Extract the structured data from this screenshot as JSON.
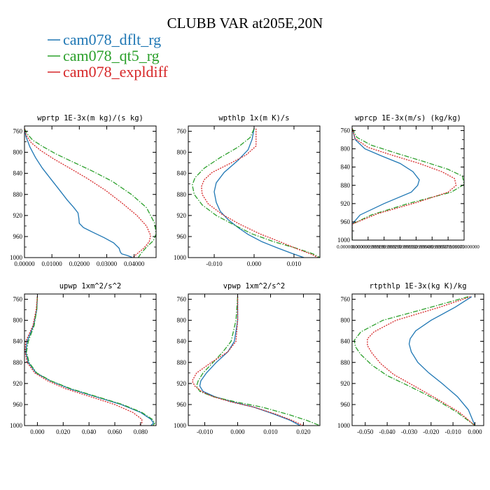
{
  "figure": {
    "title": "CLUBB VAR at205E,20N",
    "legend": [
      {
        "label": "cam078_dflt_rg",
        "color": "#1f77b4",
        "dash": "solid"
      },
      {
        "label": "cam078_qt5_rg",
        "color": "#2ca02c",
        "dash": "dashdot"
      },
      {
        "label": "cam078_expldiff",
        "color": "#d62728",
        "dash": "dotted"
      }
    ]
  },
  "chart_data": [
    {
      "type": "line",
      "title": "wprtp  1E-3x(m kg)/(s kg)",
      "xlim": [
        0,
        0.048
      ],
      "ylim": [
        1000,
        750
      ],
      "yticks": [
        760,
        800,
        840,
        880,
        920,
        960,
        1000
      ],
      "xticks": [
        {
          "v": 0,
          "label": "0.00000"
        },
        {
          "v": 0.01,
          "label": "0.01000"
        },
        {
          "v": 0.02,
          "label": "0.02000"
        },
        {
          "v": 0.03,
          "label": "0.03000"
        },
        {
          "v": 0.04,
          "label": "0.04000"
        }
      ],
      "series": [
        {
          "name": "cam078_dflt_rg",
          "x": [
            0.0,
            0.0005,
            0.002,
            0.004,
            0.0065,
            0.0095,
            0.0125,
            0.0155,
            0.018,
            0.0195,
            0.0198,
            0.02,
            0.0215,
            0.025,
            0.029,
            0.0325,
            0.0345,
            0.035,
            0.0355,
            0.0375,
            0.0395
          ],
          "y": [
            755,
            770,
            790,
            810,
            830,
            850,
            870,
            890,
            905,
            915,
            925,
            935,
            943,
            952,
            962,
            972,
            982,
            990,
            993,
            996,
            1000
          ]
        },
        {
          "name": "cam078_qt5_rg",
          "x": [
            0.0,
            0.001,
            0.003,
            0.007,
            0.0115,
            0.0175,
            0.0245,
            0.032,
            0.039,
            0.0445,
            0.0475,
            0.048,
            0.047,
            0.0445,
            0.0425,
            0.0415
          ],
          "y": [
            755,
            765,
            777,
            790,
            803,
            818,
            835,
            855,
            880,
            905,
            935,
            955,
            968,
            980,
            992,
            1000
          ]
        },
        {
          "name": "cam078_expldiff",
          "x": [
            0.0,
            0.0007,
            0.0025,
            0.006,
            0.0105,
            0.0165,
            0.023,
            0.0295,
            0.0355,
            0.041,
            0.0445,
            0.046,
            0.0455,
            0.0435,
            0.041,
            0.0395
          ],
          "y": [
            755,
            768,
            782,
            797,
            812,
            830,
            850,
            872,
            896,
            920,
            940,
            958,
            970,
            982,
            993,
            1000
          ]
        }
      ]
    },
    {
      "type": "line",
      "title": "wpthlp  1x(m K)/s",
      "xlim": [
        -0.0165,
        0.0165
      ],
      "ylim": [
        1000,
        750
      ],
      "yticks": [
        760,
        800,
        840,
        880,
        920,
        960,
        1000
      ],
      "xticks": [
        {
          "v": -0.01,
          "label": "-0.010"
        },
        {
          "v": 0,
          "label": "0.000"
        },
        {
          "v": 0.01,
          "label": "0.010"
        }
      ],
      "series": [
        {
          "name": "cam078_dflt_rg",
          "x": [
            0.0,
            -0.0005,
            -0.0015,
            -0.004,
            -0.0075,
            -0.0095,
            -0.01,
            -0.0095,
            -0.0085,
            -0.0065,
            -0.004,
            -0.0015,
            0.002,
            0.006,
            0.0095,
            0.0125
          ],
          "y": [
            755,
            775,
            795,
            815,
            838,
            858,
            875,
            895,
            912,
            928,
            943,
            956,
            970,
            982,
            992,
            1000
          ]
        },
        {
          "name": "cam078_qt5_rg",
          "x": [
            0.0,
            -0.001,
            -0.004,
            -0.0085,
            -0.0125,
            -0.0148,
            -0.0155,
            -0.015,
            -0.013,
            -0.0095,
            -0.005,
            -0.0005,
            0.005,
            0.0105,
            0.0148,
            0.0165
          ],
          "y": [
            755,
            772,
            790,
            810,
            830,
            848,
            862,
            880,
            900,
            920,
            938,
            955,
            970,
            982,
            993,
            1000
          ]
        },
        {
          "name": "cam078_expldiff",
          "x": [
            0.0005,
            0.0005,
            0.0005,
            -0.002,
            -0.0065,
            -0.0105,
            -0.0125,
            -0.0132,
            -0.013,
            -0.0115,
            -0.008,
            -0.0035,
            0.0015,
            0.0065,
            0.011,
            0.0145,
            0.016
          ],
          "y": [
            755,
            770,
            788,
            805,
            823,
            838,
            852,
            865,
            880,
            898,
            918,
            937,
            955,
            970,
            984,
            994,
            1000
          ]
        }
      ]
    },
    {
      "type": "line",
      "title": "wprcp  1E-3x(m/s) (kg/kg)",
      "xlim": [
        0,
        0.0007
      ],
      "ylim": [
        1000,
        750
      ],
      "yticks": [
        760,
        800,
        840,
        880,
        920,
        960,
        1000
      ],
      "xticks": [
        {
          "v": 0,
          "label": "0.00000000000"
        },
        {
          "v": 0.0001,
          "label": "0.000099999999"
        },
        {
          "v": 0.0002,
          "label": "0.000199999995"
        },
        {
          "v": 0.0003,
          "label": "0.000299999992"
        },
        {
          "v": 0.0004,
          "label": "0.000399999990"
        },
        {
          "v": 0.0005,
          "label": "0.000499999987"
        },
        {
          "v": 0.0006,
          "label": "0.000599999985"
        },
        {
          "v": 0.0007,
          "label": "0.00070000000"
        }
      ],
      "series": [
        {
          "name": "cam078_dflt_rg",
          "x": [
            0.0,
            2e-05,
            8e-05,
            0.00018,
            0.0003,
            0.00038,
            0.00042,
            0.00041,
            0.00037,
            0.0002,
            5e-05,
            0.0,
            0.0
          ],
          "y": [
            755,
            780,
            800,
            815,
            832,
            850,
            868,
            880,
            895,
            920,
            945,
            965,
            1000
          ]
        },
        {
          "name": "cam078_qt5_rg",
          "x": [
            0.0,
            3e-05,
            0.00012,
            0.00028,
            0.00045,
            0.0006,
            0.00069,
            0.0007,
            0.00062,
            0.00035,
            0.00012,
            0.0,
            0.0
          ],
          "y": [
            755,
            775,
            792,
            810,
            828,
            845,
            860,
            878,
            895,
            920,
            945,
            965,
            1000
          ]
        },
        {
          "name": "cam078_expldiff",
          "x": [
            0.0,
            2e-05,
            0.0001,
            0.00025,
            0.00042,
            0.00056,
            0.00064,
            0.00065,
            0.0006,
            0.0004,
            0.00016,
            0.0,
            0.0
          ],
          "y": [
            755,
            778,
            797,
            814,
            832,
            850,
            865,
            880,
            895,
            918,
            942,
            965,
            1000
          ]
        }
      ]
    },
    {
      "type": "line",
      "title": "upwp  1xm^2/s^2",
      "xlim": [
        -0.01,
        0.092
      ],
      "ylim": [
        1000,
        750
      ],
      "yticks": [
        760,
        800,
        840,
        880,
        920,
        960,
        1000
      ],
      "xticks": [
        {
          "v": 0,
          "label": "0.000"
        },
        {
          "v": 0.02,
          "label": "0.020"
        },
        {
          "v": 0.04,
          "label": "0.040"
        },
        {
          "v": 0.06,
          "label": "0.060"
        },
        {
          "v": 0.08,
          "label": "0.080"
        }
      ],
      "series": [
        {
          "name": "cam078_dflt_rg",
          "x": [
            0.0,
            -0.0005,
            -0.003,
            -0.008,
            -0.009,
            -0.007,
            -0.001,
            0.01,
            0.025,
            0.045,
            0.065,
            0.08,
            0.088,
            0.09,
            0.088
          ],
          "y": [
            755,
            780,
            810,
            840,
            860,
            880,
            900,
            915,
            930,
            945,
            960,
            975,
            988,
            995,
            1000
          ]
        },
        {
          "name": "cam078_qt5_rg",
          "x": [
            0.0,
            -0.0005,
            -0.0025,
            -0.007,
            -0.0085,
            -0.0065,
            -0.0005,
            0.0105,
            0.026,
            0.046,
            0.066,
            0.081,
            0.089,
            0.091,
            0.0895
          ],
          "y": [
            755,
            780,
            810,
            840,
            860,
            880,
            900,
            915,
            930,
            945,
            960,
            975,
            988,
            995,
            1000
          ]
        },
        {
          "name": "cam078_expldiff",
          "x": [
            0.0,
            -0.001,
            -0.0035,
            -0.009,
            -0.0095,
            -0.008,
            -0.002,
            0.008,
            0.022,
            0.041,
            0.06,
            0.074,
            0.081,
            0.081,
            0.079
          ],
          "y": [
            755,
            780,
            810,
            840,
            860,
            880,
            900,
            915,
            930,
            945,
            960,
            975,
            988,
            995,
            1000
          ]
        }
      ]
    },
    {
      "type": "line",
      "title": "vpwp  1xm^2/s^2",
      "xlim": [
        -0.015,
        0.025
      ],
      "ylim": [
        1000,
        750
      ],
      "yticks": [
        760,
        800,
        840,
        880,
        920,
        960,
        1000
      ],
      "xticks": [
        {
          "v": -0.01,
          "label": "-0.010"
        },
        {
          "v": 0,
          "label": "0.000"
        },
        {
          "v": 0.01,
          "label": "0.010"
        },
        {
          "v": 0.02,
          "label": "0.020"
        }
      ],
      "series": [
        {
          "name": "cam078_dflt_rg",
          "x": [
            0.0,
            0.0,
            -0.001,
            -0.003,
            -0.0065,
            -0.0095,
            -0.0112,
            -0.0115,
            -0.0105,
            -0.007,
            -0.0015,
            0.005,
            0.011,
            0.016,
            0.019
          ],
          "y": [
            755,
            800,
            840,
            860,
            880,
            900,
            915,
            925,
            935,
            945,
            955,
            965,
            978,
            990,
            1000
          ]
        },
        {
          "name": "cam078_qt5_rg",
          "x": [
            0.0,
            -0.0005,
            -0.002,
            -0.0045,
            -0.0075,
            -0.0105,
            -0.012,
            -0.0125,
            -0.0115,
            -0.0075,
            -0.0005,
            0.0075,
            0.015,
            0.021,
            0.025
          ],
          "y": [
            755,
            800,
            840,
            860,
            880,
            900,
            915,
            925,
            935,
            945,
            955,
            965,
            978,
            990,
            1000
          ]
        },
        {
          "name": "cam078_expldiff",
          "x": [
            0.0,
            0.0,
            -0.0005,
            -0.003,
            -0.008,
            -0.0125,
            -0.0138,
            -0.013,
            -0.011,
            -0.0075,
            -0.002,
            0.005,
            0.0115,
            0.0165,
            0.02
          ],
          "y": [
            755,
            800,
            840,
            860,
            880,
            900,
            915,
            925,
            935,
            945,
            955,
            965,
            978,
            990,
            1000
          ]
        }
      ]
    },
    {
      "type": "line",
      "title": "rtpthlp  1E-3x(kg K)/kg",
      "xlim": [
        -0.056,
        0.004
      ],
      "ylim": [
        1000,
        750
      ],
      "yticks": [
        760,
        800,
        840,
        880,
        920,
        960,
        1000
      ],
      "xticks": [
        {
          "v": -0.05,
          "label": "-0.050"
        },
        {
          "v": -0.04,
          "label": "-0.040"
        },
        {
          "v": -0.03,
          "label": "-0.030"
        },
        {
          "v": -0.02,
          "label": "-0.020"
        },
        {
          "v": -0.01,
          "label": "-0.010"
        },
        {
          "v": 0,
          "label": "0.000"
        }
      ],
      "series": [
        {
          "name": "cam078_dflt_rg",
          "x": [
            -0.0015,
            -0.009,
            -0.02,
            -0.027,
            -0.0295,
            -0.03,
            -0.029,
            -0.026,
            -0.021,
            -0.015,
            -0.008,
            -0.003,
            0.0
          ],
          "y": [
            755,
            775,
            800,
            820,
            835,
            845,
            860,
            880,
            900,
            920,
            945,
            970,
            1000
          ]
        },
        {
          "name": "cam078_qt5_rg",
          "x": [
            -0.003,
            -0.02,
            -0.042,
            -0.052,
            -0.055,
            -0.0545,
            -0.052,
            -0.047,
            -0.04,
            -0.03,
            -0.018,
            -0.008,
            0.0
          ],
          "y": [
            755,
            775,
            800,
            822,
            838,
            850,
            865,
            885,
            905,
            925,
            950,
            975,
            1000
          ]
        },
        {
          "name": "cam078_expldiff",
          "x": [
            -0.002,
            -0.016,
            -0.036,
            -0.046,
            -0.049,
            -0.049,
            -0.047,
            -0.043,
            -0.037,
            -0.028,
            -0.017,
            -0.007,
            0.0
          ],
          "y": [
            755,
            775,
            800,
            822,
            835,
            848,
            862,
            882,
            903,
            924,
            950,
            975,
            1000
          ]
        }
      ]
    }
  ]
}
